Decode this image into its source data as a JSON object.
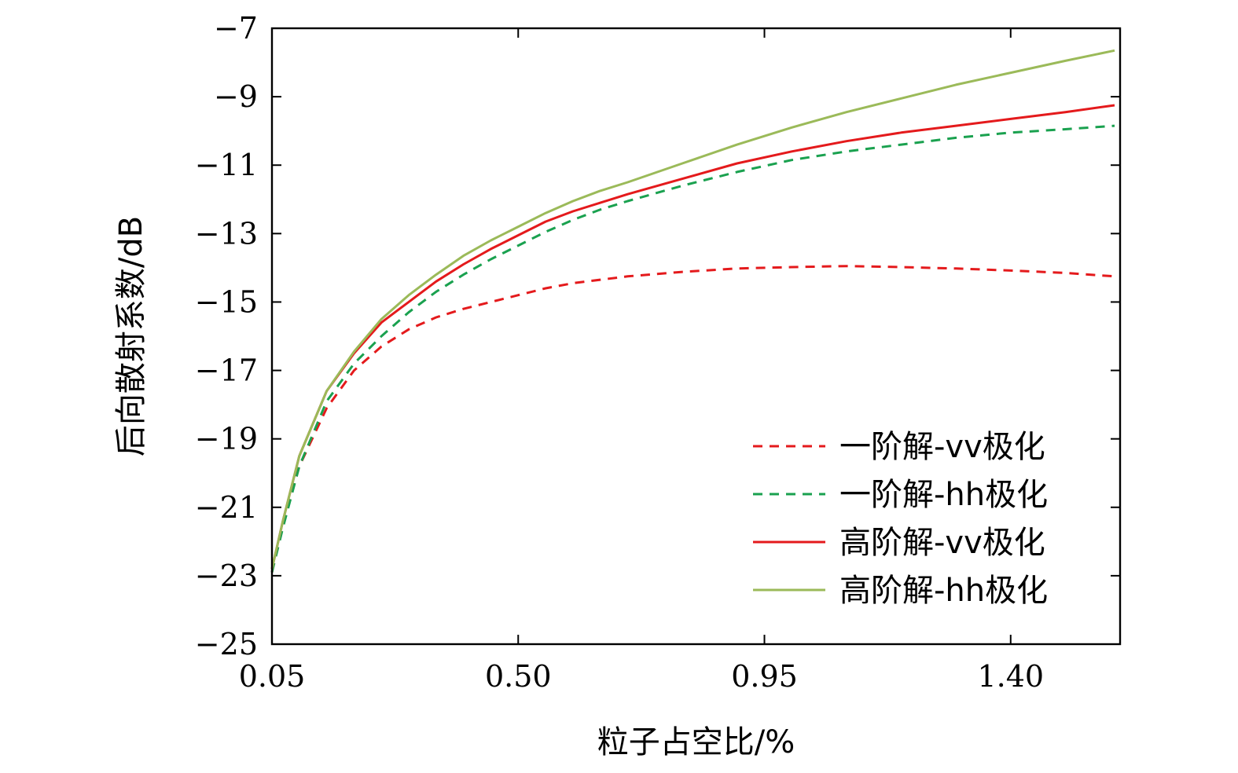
{
  "chart_data": {
    "type": "line",
    "xlabel": "粒子占空比/%",
    "ylabel": "后向散射系数/dB",
    "xlim": [
      0.05,
      1.6
    ],
    "ylim": [
      -25,
      -7
    ],
    "xticks": [
      0.05,
      0.5,
      0.95,
      1.4
    ],
    "xtick_labels": [
      "0.05",
      "0.50",
      "0.95",
      "1.40"
    ],
    "yticks": [
      -25,
      -23,
      -21,
      -19,
      -17,
      -15,
      -13,
      -11,
      -9,
      -7
    ],
    "ytick_labels": [
      "−25",
      "−23",
      "−21",
      "−19",
      "−17",
      "−15",
      "−13",
      "−11",
      "−9",
      "−7"
    ],
    "grid": false,
    "legend_position": "bottom-right",
    "series": [
      {
        "name": "一阶解-vv极化",
        "color": "#e41a1c",
        "dash": "dashed",
        "x": [
          0.05,
          0.07,
          0.1,
          0.15,
          0.2,
          0.25,
          0.3,
          0.35,
          0.4,
          0.45,
          0.5,
          0.55,
          0.6,
          0.65,
          0.7,
          0.8,
          0.9,
          1.0,
          1.1,
          1.2,
          1.3,
          1.4,
          1.5,
          1.59
        ],
        "y": [
          -22.9,
          -21.5,
          -19.8,
          -18.1,
          -17.0,
          -16.3,
          -15.8,
          -15.45,
          -15.2,
          -15.0,
          -14.8,
          -14.6,
          -14.45,
          -14.35,
          -14.25,
          -14.12,
          -14.02,
          -13.98,
          -13.95,
          -13.98,
          -14.02,
          -14.08,
          -14.15,
          -14.25
        ]
      },
      {
        "name": "一阶解-hh极化",
        "color": "#1aa14f",
        "dash": "dashed",
        "x": [
          0.05,
          0.07,
          0.1,
          0.15,
          0.2,
          0.25,
          0.3,
          0.35,
          0.4,
          0.45,
          0.5,
          0.55,
          0.6,
          0.65,
          0.7,
          0.8,
          0.9,
          1.0,
          1.1,
          1.2,
          1.3,
          1.4,
          1.5,
          1.59
        ],
        "y": [
          -22.9,
          -21.6,
          -19.8,
          -17.9,
          -16.8,
          -16.0,
          -15.3,
          -14.7,
          -14.2,
          -13.75,
          -13.35,
          -12.95,
          -12.6,
          -12.3,
          -12.05,
          -11.6,
          -11.2,
          -10.85,
          -10.6,
          -10.4,
          -10.2,
          -10.05,
          -9.95,
          -9.85
        ]
      },
      {
        "name": "高阶解-vv极化",
        "color": "#e41a1c",
        "dash": "solid",
        "x": [
          0.05,
          0.07,
          0.1,
          0.15,
          0.2,
          0.25,
          0.3,
          0.35,
          0.4,
          0.45,
          0.5,
          0.55,
          0.6,
          0.65,
          0.7,
          0.8,
          0.9,
          1.0,
          1.1,
          1.2,
          1.3,
          1.4,
          1.5,
          1.59
        ],
        "y": [
          -22.8,
          -21.4,
          -19.5,
          -17.6,
          -16.5,
          -15.6,
          -15.0,
          -14.4,
          -13.9,
          -13.45,
          -13.05,
          -12.65,
          -12.35,
          -12.1,
          -11.85,
          -11.4,
          -10.95,
          -10.6,
          -10.3,
          -10.05,
          -9.85,
          -9.65,
          -9.45,
          -9.25
        ]
      },
      {
        "name": "高阶解-hh极化",
        "color": "#9bba59",
        "dash": "solid",
        "x": [
          0.05,
          0.07,
          0.1,
          0.15,
          0.2,
          0.25,
          0.3,
          0.35,
          0.4,
          0.45,
          0.5,
          0.55,
          0.6,
          0.65,
          0.7,
          0.8,
          0.9,
          1.0,
          1.1,
          1.2,
          1.3,
          1.4,
          1.5,
          1.59
        ],
        "y": [
          -22.8,
          -21.4,
          -19.5,
          -17.6,
          -16.45,
          -15.5,
          -14.8,
          -14.2,
          -13.65,
          -13.2,
          -12.8,
          -12.4,
          -12.05,
          -11.75,
          -11.5,
          -10.95,
          -10.4,
          -9.9,
          -9.45,
          -9.05,
          -8.65,
          -8.3,
          -7.95,
          -7.65
        ]
      }
    ]
  }
}
